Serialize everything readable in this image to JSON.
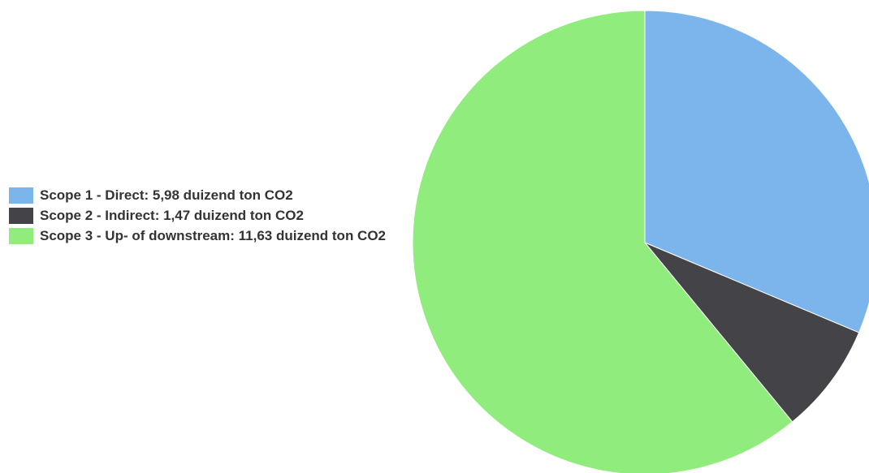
{
  "chart_data": {
    "type": "pie",
    "title": "",
    "categories": [
      "Scope 1 - Direct",
      "Scope 2 - Indirect",
      "Scope 3 - Up- of downstream"
    ],
    "values": [
      5.98,
      1.47,
      11.63
    ],
    "unit": "duizend ton CO2",
    "colors": [
      "#7cb5ec",
      "#434348",
      "#90ed7d"
    ],
    "legend": {
      "position": "left",
      "items": [
        {
          "label": "Scope 1 - Direct: 5,98 duizend ton CO2",
          "color": "#7cb5ec"
        },
        {
          "label": "Scope 2 - Indirect: 1,47 duizend ton CO2",
          "color": "#434348"
        },
        {
          "label": "Scope 3 - Up- of downstream: 11,63 duizend ton CO2",
          "color": "#90ed7d"
        }
      ]
    }
  }
}
